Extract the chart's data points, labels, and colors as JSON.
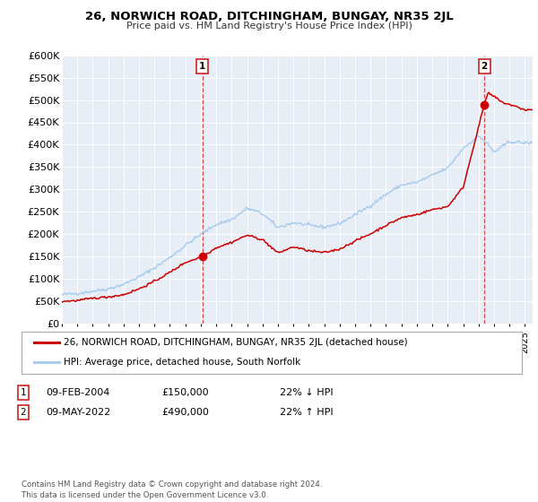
{
  "title": "26, NORWICH ROAD, DITCHINGHAM, BUNGAY, NR35 2JL",
  "subtitle": "Price paid vs. HM Land Registry's House Price Index (HPI)",
  "ylim": [
    0,
    600000
  ],
  "yticks": [
    0,
    50000,
    100000,
    150000,
    200000,
    250000,
    300000,
    350000,
    400000,
    450000,
    500000,
    550000,
    600000
  ],
  "ytick_labels": [
    "£0",
    "£50K",
    "£100K",
    "£150K",
    "£200K",
    "£250K",
    "£300K",
    "£350K",
    "£400K",
    "£450K",
    "£500K",
    "£550K",
    "£600K"
  ],
  "xlim_start": 1995.0,
  "xlim_end": 2025.5,
  "marker1_x": 2004.1,
  "marker1_y": 150000,
  "marker2_x": 2022.37,
  "marker2_y": 490000,
  "vline1_x": 2004.1,
  "vline2_x": 2022.37,
  "house_color": "#cc0000",
  "hpi_color": "#aaccee",
  "plot_bg": "#e8eef5",
  "grid_color": "#ffffff",
  "badge_edge_color": "#cc2222",
  "legend_line1": "26, NORWICH ROAD, DITCHINGHAM, BUNGAY, NR35 2JL (detached house)",
  "legend_line2": "HPI: Average price, detached house, South Norfolk",
  "note1_date": "09-FEB-2004",
  "note1_price": "£150,000",
  "note1_hpi": "22% ↓ HPI",
  "note2_date": "09-MAY-2022",
  "note2_price": "£490,000",
  "note2_hpi": "22% ↑ HPI",
  "footer": "Contains HM Land Registry data © Crown copyright and database right 2024.\nThis data is licensed under the Open Government Licence v3.0."
}
